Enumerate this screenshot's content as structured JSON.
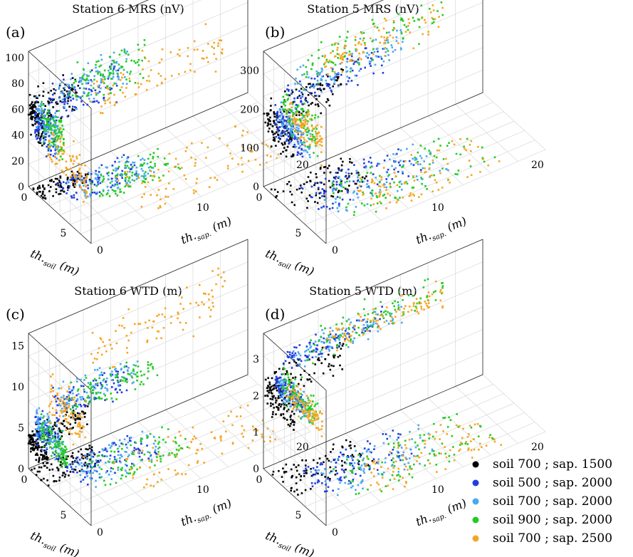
{
  "figure": {
    "legend": [
      {
        "label": "soil 700 ; sap. 1500",
        "color": "#000000"
      },
      {
        "label": "soil 500 ; sap. 2000",
        "color": "#1f3fe0"
      },
      {
        "label": "soil 700 ; sap. 2000",
        "color": "#4aa8f0"
      },
      {
        "label": "soil 900 ; sap. 2000",
        "color": "#22cc22"
      },
      {
        "label": "soil 700 ; sap. 2500",
        "color": "#f5a623"
      }
    ]
  },
  "chart_data": [
    {
      "type": "scatter",
      "panel_letter": "(a)",
      "title": "Station 6 MRS (nV)",
      "xlabel": "th.soil (m)",
      "ylabel": "th.sap. (m)",
      "x_ticks": [
        "0",
        "5"
      ],
      "y_ticks": [
        "0",
        "10",
        "20"
      ],
      "z_ticks": [
        "0",
        "20",
        "40",
        "60",
        "80",
        "100"
      ],
      "xlim": [
        0,
        8
      ],
      "ylim": [
        0,
        22
      ],
      "zlim": [
        0,
        105
      ],
      "grid": true,
      "series": [
        {
          "label": "soil 700 ; sap. 1500",
          "soil_range": [
            0.3,
            2.0
          ],
          "sap_range": [
            0,
            5
          ],
          "z_center": 58,
          "z_spread": 14
        },
        {
          "label": "soil 500 ; sap. 2000",
          "soil_range": [
            0.8,
            3.5
          ],
          "sap_range": [
            2,
            9
          ],
          "z_center": 55,
          "z_spread": 16
        },
        {
          "label": "soil 700 ; sap. 2000",
          "soil_range": [
            1.0,
            4.0
          ],
          "sap_range": [
            3,
            10
          ],
          "z_center": 60,
          "z_spread": 15
        },
        {
          "label": "soil 900 ; sap. 2000",
          "soil_range": [
            1.5,
            4.5
          ],
          "sap_range": [
            4,
            12
          ],
          "z_center": 63,
          "z_spread": 17
        },
        {
          "label": "soil 700 ; sap. 2500",
          "soil_range": [
            2.5,
            7.5
          ],
          "sap_range": [
            6,
            20
          ],
          "z_center": 45,
          "z_spread": 18
        }
      ]
    },
    {
      "type": "scatter",
      "panel_letter": "(b)",
      "title": "Station 5 MRS (nV)",
      "xlabel": "th.soil (m)",
      "ylabel": "th.sap. (m)",
      "x_ticks": [
        "0",
        "5"
      ],
      "y_ticks": [
        "0",
        "10",
        "20"
      ],
      "z_ticks": [
        "0",
        "100",
        "200",
        "300"
      ],
      "xlim": [
        0,
        8
      ],
      "ylim": [
        0,
        22
      ],
      "zlim": [
        0,
        350
      ],
      "grid": true,
      "series": [
        {
          "label": "soil 700 ; sap. 1500",
          "soil_range": [
            0.5,
            4.0
          ],
          "sap_range": [
            0,
            8
          ],
          "z_center": 180,
          "z_spread": 45
        },
        {
          "label": "soil 500 ; sap. 2000",
          "soil_range": [
            1.5,
            5.0
          ],
          "sap_range": [
            2,
            12
          ],
          "z_center": 200,
          "z_spread": 40
        },
        {
          "label": "soil 700 ; sap. 2000",
          "soil_range": [
            2.0,
            6.0
          ],
          "sap_range": [
            3,
            14
          ],
          "z_center": 220,
          "z_spread": 45
        },
        {
          "label": "soil 900 ; sap. 2000",
          "soil_range": [
            2.5,
            7.0
          ],
          "sap_range": [
            4,
            18
          ],
          "z_center": 260,
          "z_spread": 55
        },
        {
          "label": "soil 700 ; sap. 2500",
          "soil_range": [
            3.0,
            7.5
          ],
          "sap_range": [
            6,
            18
          ],
          "z_center": 250,
          "z_spread": 45
        }
      ]
    },
    {
      "type": "scatter",
      "panel_letter": "(c)",
      "title": "Station 6 WTD (m)",
      "xlabel": "th.soil (m)",
      "ylabel": "th.sap. (m)",
      "x_ticks": [
        "0",
        "5"
      ],
      "y_ticks": [
        "0",
        "10",
        "20"
      ],
      "z_ticks": [
        "0",
        "5",
        "10",
        "15"
      ],
      "xlim": [
        0,
        8
      ],
      "ylim": [
        0,
        22
      ],
      "zlim": [
        0,
        16.5
      ],
      "grid": true,
      "series": [
        {
          "label": "soil 700 ; sap. 1500",
          "soil_range": [
            0.2,
            2.5
          ],
          "sap_range": [
            0,
            6
          ],
          "z_center": 3.5,
          "z_spread": 1.2
        },
        {
          "label": "soil 500 ; sap. 2000",
          "soil_range": [
            0.8,
            4.0
          ],
          "sap_range": [
            2,
            10
          ],
          "z_center": 6.0,
          "z_spread": 2.0
        },
        {
          "label": "soil 700 ; sap. 2000",
          "soil_range": [
            1.0,
            4.5
          ],
          "sap_range": [
            3,
            11
          ],
          "z_center": 6.5,
          "z_spread": 2.0
        },
        {
          "label": "soil 900 ; sap. 2000",
          "soil_range": [
            1.5,
            5.0
          ],
          "sap_range": [
            4,
            13
          ],
          "z_center": 6.0,
          "z_spread": 2.2
        },
        {
          "label": "soil 700 ; sap. 2500",
          "soil_range": [
            2.5,
            7.5
          ],
          "sap_range": [
            6,
            20
          ],
          "z_center": 11.0,
          "z_spread": 3.0
        }
      ]
    },
    {
      "type": "scatter",
      "panel_letter": "(d)",
      "title": "Station 5 WTD (m)",
      "xlabel": "th.soil (m)",
      "ylabel": "th.sap. (m)",
      "x_ticks": [
        "0",
        "5"
      ],
      "y_ticks": [
        "0",
        "10",
        "20"
      ],
      "z_ticks": [
        "0",
        "1",
        "2",
        "3"
      ],
      "xlim": [
        0,
        8
      ],
      "ylim": [
        0,
        22
      ],
      "zlim": [
        0,
        3.7
      ],
      "grid": true,
      "series": [
        {
          "label": "soil 700 ; sap. 1500",
          "soil_range": [
            0.5,
            4.0
          ],
          "sap_range": [
            0,
            8
          ],
          "z_center": 2.2,
          "z_spread": 0.45
        },
        {
          "label": "soil 500 ; sap. 2000",
          "soil_range": [
            1.5,
            5.0
          ],
          "sap_range": [
            2,
            12
          ],
          "z_center": 2.7,
          "z_spread": 0.3
        },
        {
          "label": "soil 700 ; sap. 2000",
          "soil_range": [
            2.0,
            6.0
          ],
          "sap_range": [
            3,
            14
          ],
          "z_center": 2.7,
          "z_spread": 0.35
        },
        {
          "label": "soil 900 ; sap. 2000",
          "soil_range": [
            2.5,
            7.0
          ],
          "sap_range": [
            4,
            18
          ],
          "z_center": 2.8,
          "z_spread": 0.45
        },
        {
          "label": "soil 700 ; sap. 2500",
          "soil_range": [
            3.0,
            7.5
          ],
          "sap_range": [
            6,
            18
          ],
          "z_center": 2.7,
          "z_spread": 0.35
        }
      ]
    }
  ]
}
